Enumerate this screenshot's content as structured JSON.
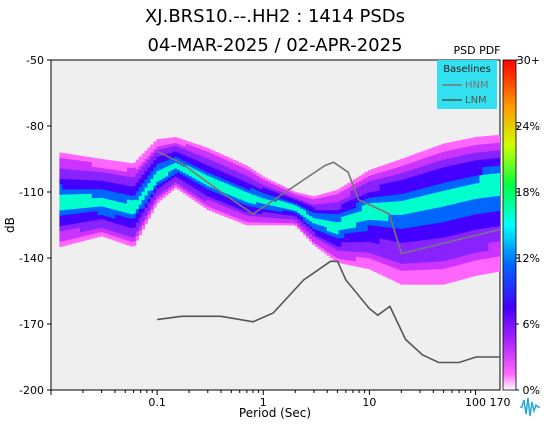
{
  "title": "XJ.BRS10.--.HH2 : 1414 PSDs",
  "subtitle": "04-MAR-2025 / 02-APR-2025",
  "colorbar_title": "PSD PDF",
  "chart_data": {
    "type": "heatmap",
    "xlabel": "Period (Sec)",
    "ylabel": "dB",
    "x_scale": "log",
    "xlim": [
      0.01,
      170
    ],
    "ylim": [
      -200,
      -50
    ],
    "x_ticks": [
      {
        "v": 0.1,
        "label": "0.1"
      },
      {
        "v": 1,
        "label": "1"
      },
      {
        "v": 10,
        "label": "10"
      },
      {
        "v": 100,
        "label": "100"
      },
      {
        "v": 170,
        "label": "170"
      }
    ],
    "y_ticks": [
      -50,
      -80,
      -110,
      -140,
      -170,
      -200
    ],
    "colorbar": {
      "labels": [
        "30+",
        "24%",
        "18%",
        "12%",
        "6%",
        "0%"
      ],
      "colors": [
        "#ff0000",
        "#ff8800",
        "#ffff00",
        "#00ff00",
        "#00ffff",
        "#0044ff",
        "#6600ff",
        "#ff66ff",
        "#ffffff"
      ]
    },
    "legend": {
      "title": "Baselines",
      "entries": [
        "HNM",
        "LNM"
      ],
      "background": "#33e0f0",
      "position": "top-right"
    },
    "series": [
      {
        "name": "HNM",
        "color": "#777777",
        "x": [
          0.1,
          0.17,
          0.4,
          0.8,
          3.8,
          4.6,
          6.3,
          7.9,
          15.4,
          20,
          170
        ],
        "y": [
          -91.5,
          -97,
          -110,
          -120,
          -98,
          -96.5,
          -101,
          -113.5,
          -120,
          -138,
          -127
        ]
      },
      {
        "name": "LNM",
        "color": "#555555",
        "x": [
          0.1,
          0.17,
          0.4,
          0.8,
          1.24,
          2.4,
          4.3,
          5,
          6,
          10,
          12,
          15.6,
          21.9,
          31.6,
          45,
          70,
          101,
          154,
          170
        ],
        "y": [
          -168,
          -166.5,
          -166.5,
          -169,
          -165,
          -150,
          -141.5,
          -141.5,
          -150,
          -163,
          -166,
          -162,
          -177,
          -184,
          -187.5,
          -187.5,
          -185,
          -185,
          -185
        ]
      }
    ],
    "pdf_density_band": {
      "x": [
        0.012,
        0.03,
        0.06,
        0.1,
        0.15,
        0.3,
        0.7,
        1.0,
        2.0,
        3.0,
        5.0,
        10,
        20,
        50,
        100,
        170
      ],
      "mode": [
        -114,
        -115,
        -118,
        -103,
        -98,
        -105,
        -112,
        -114,
        -117,
        -123,
        -126,
        -118,
        -116,
        -112,
        -108,
        -105
      ],
      "p_low": [
        -135,
        -130,
        -135,
        -115,
        -108,
        -118,
        -125,
        -125,
        -125,
        -134,
        -142,
        -145,
        -152,
        -152,
        -148,
        -146
      ],
      "p_high": [
        -92,
        -95,
        -97,
        -86,
        -85,
        -90,
        -98,
        -103,
        -110,
        -112,
        -109,
        -100,
        -95,
        -88,
        -85,
        -84
      ]
    }
  }
}
